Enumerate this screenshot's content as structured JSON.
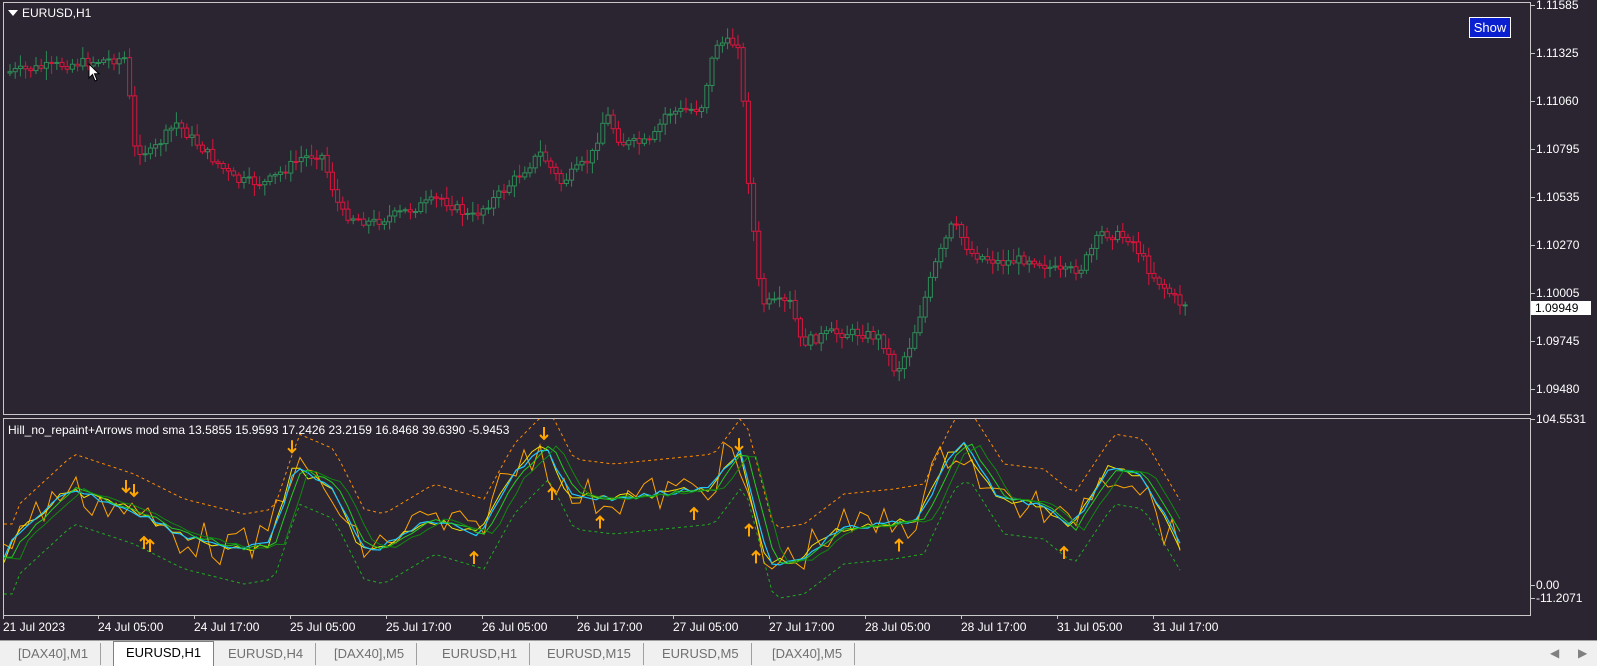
{
  "main_chart": {
    "title": "EURUSD,H1",
    "show_button": "Show",
    "current_price": "1.09949",
    "price_ticks": [
      "1.11585",
      "1.11325",
      "1.11060",
      "1.10795",
      "1.10535",
      "1.10270",
      "1.10005",
      "1.09745",
      "1.09480"
    ],
    "bull_color": "#2e8b57",
    "bear_color": "#dc143c"
  },
  "indicator": {
    "title": "Hill_no_repaint+Arrows mod sma 13.5855 15.9593 17.2426 23.2159 16.8468 39.6390 -5.9453",
    "ticks": [
      "104.5531",
      "0.00",
      "-11.2071"
    ],
    "arrow_color": "#ffa500"
  },
  "time_axis": [
    "21 Jul 2023",
    "24 Jul 05:00",
    "24 Jul 17:00",
    "25 Jul 05:00",
    "25 Jul 17:00",
    "26 Jul 05:00",
    "26 Jul 17:00",
    "27 Jul 05:00",
    "27 Jul 17:00",
    "28 Jul 05:00",
    "28 Jul 17:00",
    "31 Jul 05:00",
    "31 Jul 17:00"
  ],
  "tabs": [
    {
      "label": "[DAX40],M1",
      "active": false
    },
    {
      "label": "EURUSD,H1",
      "active": true
    },
    {
      "label": "EURUSD,H4",
      "active": false
    },
    {
      "label": "[DAX40],M5",
      "active": false
    },
    {
      "label": "EURUSD,H1",
      "active": false
    },
    {
      "label": "EURUSD,M15",
      "active": false
    },
    {
      "label": "EURUSD,M5",
      "active": false
    },
    {
      "label": "[DAX40],M5",
      "active": false
    }
  ]
}
